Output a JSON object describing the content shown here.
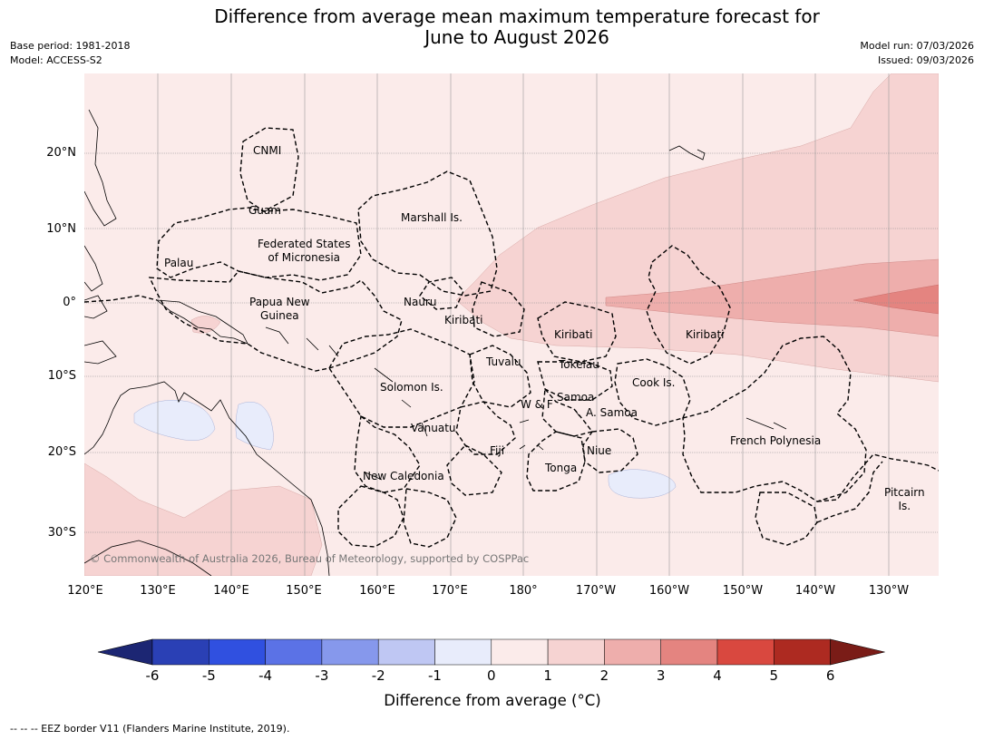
{
  "header": {
    "title_line1": "Difference from average mean maximum temperature forecast for",
    "title_line2": "June to August 2026",
    "base_period": "Base period: 1981-2018",
    "model": "Model: ACCESS-S2",
    "model_run": "Model run: 07/03/2026",
    "issued": "Issued: 09/03/2026"
  },
  "map": {
    "lat_labels": [
      "20°N",
      "10°N",
      "0°",
      "10°S",
      "20°S",
      "30°S"
    ],
    "lon_labels": [
      "120°E",
      "130°E",
      "140°E",
      "150°E",
      "160°E",
      "170°E",
      "180°",
      "170°W",
      "160°W",
      "150°W",
      "140°W",
      "130°W"
    ],
    "copyright": "© Commonwealth of Australia 2026, Bureau of Meteorology, supported by COSPPac",
    "regions": [
      "CNMI",
      "Guam",
      "Marshall Is.",
      "Federated States\nof Micronesia",
      "Palau",
      "Papua New\nGuinea",
      "Nauru",
      "Kiribati",
      "Kiribati",
      "Kiribati",
      "Tuvalu",
      "Tokelau",
      "Solomon Is.",
      "Samoa",
      "W & F",
      "A. Samoa",
      "Cook Is.",
      "Vanuatu",
      "Fiji",
      "Niue",
      "Tonga",
      "New Caledonia",
      "French Polynesia",
      "Pitcairn\nIs."
    ]
  },
  "colorbar": {
    "ticks": [
      "-6",
      "-5",
      "-4",
      "-3",
      "-2",
      "-1",
      "0",
      "1",
      "2",
      "3",
      "4",
      "5",
      "6"
    ],
    "colors": [
      "#2a40b5",
      "#3050e0",
      "#5b72e6",
      "#8698ec",
      "#bfc7f3",
      "#e8ecfb",
      "#fbebea",
      "#f6d3d2",
      "#eeaeac",
      "#e48480",
      "#d9483f",
      "#ad2a21"
    ],
    "under_color": "#1c2673",
    "over_color": "#7a1c17",
    "title": "Difference from average (°C)"
  },
  "footnote": "--  --  -- EEZ border V11 (Flanders Marine Institute, 2019)."
}
